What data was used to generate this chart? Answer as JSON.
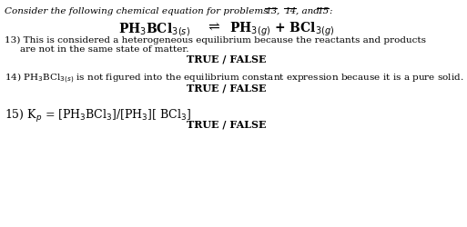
{
  "bg_color": "#ffffff",
  "font_color": "#000000",
  "header_plain": "Consider the following chemical equation for problems ",
  "header_suffix": ", and ",
  "header_end": ":",
  "num13": "13",
  "num14": "14",
  "num15": "15",
  "comma1": ", ",
  "equation_left": "PH$_3$BCl$_3$$_{(s)}$",
  "equation_arrow": "⇌",
  "equation_right": "PH$_3$$_{(g)}$ + BCl$_3$$_{(g)}$",
  "q13_line1": "13) This is considered a heterogeneous equilibrium because the reactants and products",
  "q13_line2": "are not in the same state of matter.",
  "q13_tf": "TRUE / FALSE",
  "q14_line": "14) PH$_3$BCl$_3$$_{(s)}$ is not figured into the equilibrium constant expression because it is a pure solid.",
  "q14_tf": "TRUE / FALSE",
  "q15_line": "15) K$_p$ = [PH$_3$BCl$_3$]/[PH$_3$][ BCl$_3$]",
  "q15_tf": "TRUE / FALSE"
}
